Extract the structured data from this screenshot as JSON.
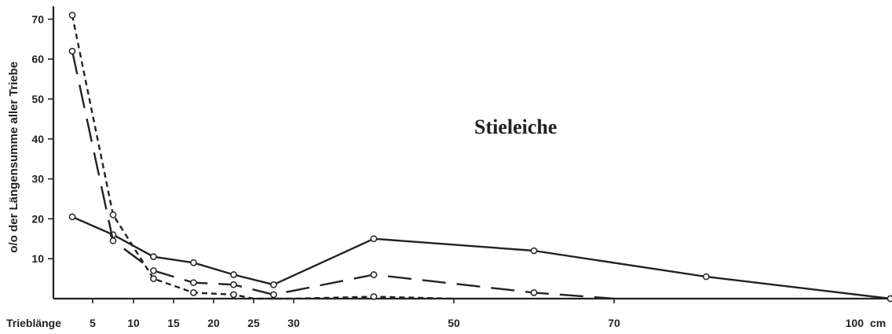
{
  "chart_data": {
    "type": "line",
    "title": "Stieleiche",
    "xlabel": "Trieblänge",
    "ylabel": "o/o der Längensumme aller Triebe",
    "x_unit": "cm",
    "x_ticks": [
      5,
      10,
      15,
      20,
      25,
      30,
      50,
      70,
      100
    ],
    "y_ticks": [
      10,
      20,
      30,
      40,
      50,
      60,
      70
    ],
    "series": [
      {
        "style": "solid",
        "points": [
          {
            "x": 2.5,
            "y": 20.5
          },
          {
            "x": 7.5,
            "y": 16.0
          },
          {
            "x": 12.5,
            "y": 10.5
          },
          {
            "x": 17.5,
            "y": 9.0
          },
          {
            "x": 22.5,
            "y": 6.0
          },
          {
            "x": 27.5,
            "y": 3.5
          },
          {
            "x": 40,
            "y": 15.0
          },
          {
            "x": 60,
            "y": 12.0
          },
          {
            "x": 80,
            "y": 5.5
          },
          {
            "x": 100,
            "y": 0.0
          }
        ]
      },
      {
        "style": "long-dash",
        "points": [
          {
            "x": 2.5,
            "y": 62.0
          },
          {
            "x": 7.5,
            "y": 14.5
          },
          {
            "x": 12.5,
            "y": 7.0
          },
          {
            "x": 17.5,
            "y": 4.0
          },
          {
            "x": 22.5,
            "y": 3.5
          },
          {
            "x": 27.5,
            "y": 1.0
          },
          {
            "x": 40,
            "y": 6.0
          },
          {
            "x": 60,
            "y": 1.5
          },
          {
            "x": 70,
            "y": 0.0
          }
        ],
        "markers": [
          true,
          true,
          true,
          true,
          true,
          true,
          true,
          true,
          false
        ]
      },
      {
        "style": "short-dash",
        "points": [
          {
            "x": 2.5,
            "y": 71.0
          },
          {
            "x": 7.5,
            "y": 21.0
          },
          {
            "x": 12.5,
            "y": 5.0
          },
          {
            "x": 17.5,
            "y": 1.5
          },
          {
            "x": 22.5,
            "y": 1.0
          },
          {
            "x": 25,
            "y": 0.0
          },
          {
            "x": 30,
            "y": 0.0
          },
          {
            "x": 40,
            "y": 0.5
          },
          {
            "x": 50,
            "y": 0.0
          }
        ],
        "markers": [
          true,
          true,
          true,
          true,
          true,
          false,
          false,
          true,
          false
        ]
      }
    ]
  }
}
